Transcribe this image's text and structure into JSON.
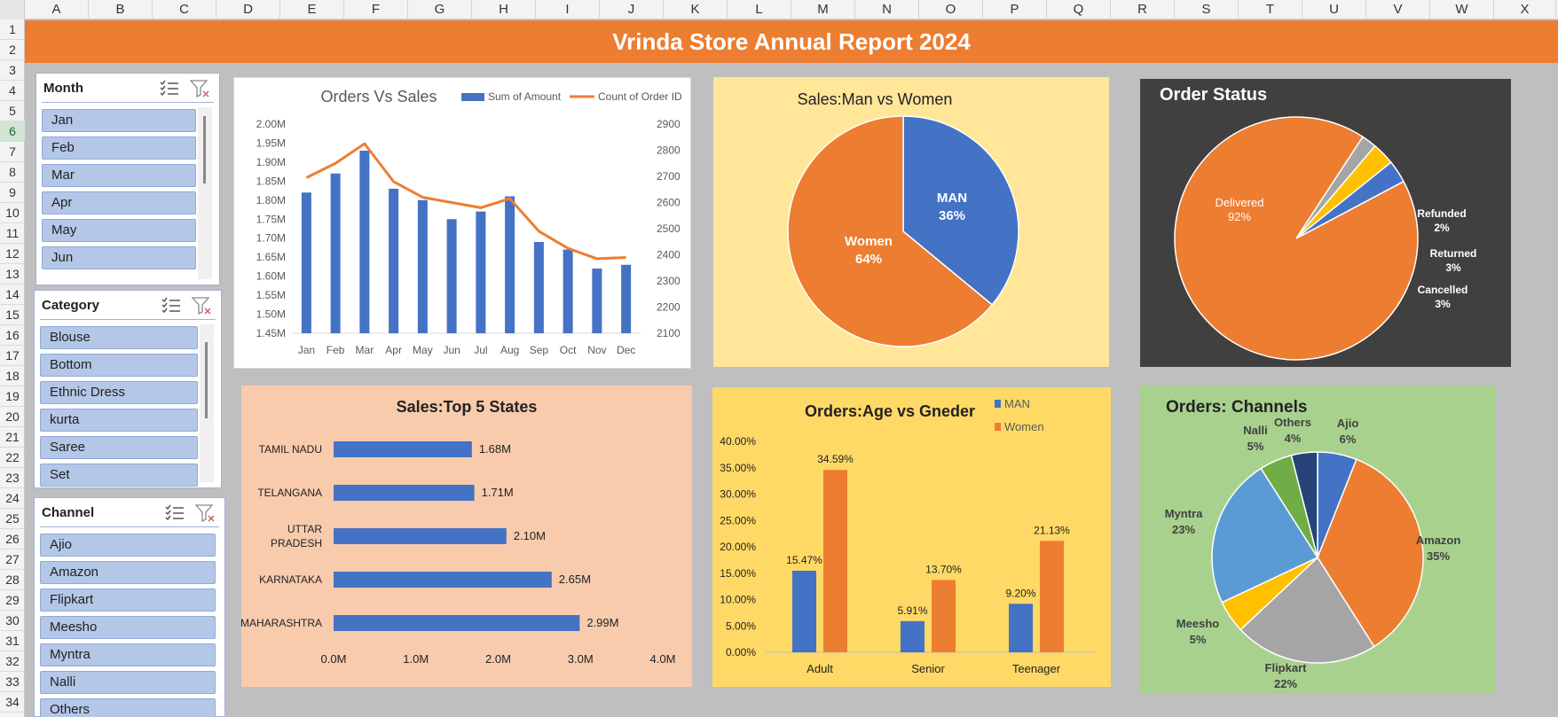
{
  "sheet": {
    "columns": [
      "A",
      "B",
      "C",
      "D",
      "E",
      "F",
      "G",
      "H",
      "I",
      "J",
      "K",
      "L",
      "M",
      "N",
      "O",
      "P",
      "Q",
      "R",
      "S",
      "T",
      "U",
      "V",
      "W",
      "X"
    ],
    "rows": [
      "1",
      "2",
      "3",
      "4",
      "5",
      "6",
      "7",
      "8",
      "9",
      "10",
      "11",
      "12",
      "13",
      "14",
      "15",
      "16",
      "17",
      "18",
      "19",
      "20",
      "21",
      "22",
      "23",
      "24",
      "25",
      "26",
      "27",
      "28",
      "29",
      "30",
      "31",
      "32",
      "33",
      "34"
    ],
    "selected_row": "6"
  },
  "title": "Vrinda Store Annual Report 2024",
  "slicers": [
    {
      "header": "Month",
      "items": [
        "Jan",
        "Feb",
        "Mar",
        "Apr",
        "May",
        "Jun"
      ]
    },
    {
      "header": "Category",
      "items": [
        "Blouse",
        "Bottom",
        "Ethnic Dress",
        "kurta",
        "Saree",
        "Set"
      ]
    },
    {
      "header": "Channel",
      "items": [
        "Ajio",
        "Amazon",
        "Flipkart",
        "Meesho",
        "Myntra",
        "Nalli",
        "Others"
      ]
    }
  ],
  "colors": {
    "blue": "#4472c4",
    "orange": "#ed7d31",
    "gray": "#a5a5a5",
    "yellow": "#ffc000",
    "lightblue": "#5b9bd5",
    "green": "#70ad47",
    "navy": "#264478"
  },
  "chart_data": [
    {
      "type": "bar",
      "title": "Orders Vs Sales",
      "categories": [
        "Jan",
        "Feb",
        "Mar",
        "Apr",
        "May",
        "Jun",
        "Jul",
        "Aug",
        "Sep",
        "Oct",
        "Nov",
        "Dec"
      ],
      "series": [
        {
          "name": "Sum of Amount",
          "type": "bar",
          "axis": "left",
          "values": [
            1.82,
            1.87,
            1.93,
            1.83,
            1.8,
            1.75,
            1.77,
            1.81,
            1.69,
            1.67,
            1.62,
            1.63
          ]
        },
        {
          "name": "Count of Order ID",
          "type": "line",
          "axis": "right",
          "values": [
            2695,
            2750,
            2825,
            2680,
            2620,
            2600,
            2580,
            2615,
            2490,
            2425,
            2385,
            2390
          ]
        }
      ],
      "left_ticks": [
        "2.00M",
        "1.95M",
        "1.90M",
        "1.85M",
        "1.80M",
        "1.75M",
        "1.70M",
        "1.65M",
        "1.60M",
        "1.55M",
        "1.50M",
        "1.45M"
      ],
      "right_ticks": [
        "2900",
        "2800",
        "2700",
        "2600",
        "2500",
        "2400",
        "2300",
        "2200",
        "2100"
      ],
      "ylim_left": [
        1.45,
        2.0
      ],
      "ylim_right": [
        2100,
        2900
      ],
      "legend": "top-right"
    },
    {
      "type": "pie",
      "title": "Sales:Man vs Women",
      "slices": [
        {
          "label": "MAN",
          "value": 36,
          "text": "36%"
        },
        {
          "label": "Women",
          "value": 64,
          "text": "64%"
        }
      ]
    },
    {
      "type": "pie",
      "title": "Order Status",
      "slices": [
        {
          "label": "Delivered",
          "value": 92,
          "text": "92%"
        },
        {
          "label": "Refunded",
          "value": 2,
          "text": "2%"
        },
        {
          "label": "Returned",
          "value": 3,
          "text": "3%"
        },
        {
          "label": "Cancelled",
          "value": 3,
          "text": "3%"
        }
      ]
    },
    {
      "type": "bar",
      "orientation": "horizontal",
      "title": "Sales:Top 5 States",
      "categories": [
        "TAMIL NADU",
        "TELANGANA",
        "UTTAR PRADESH",
        "KARNATAKA",
        "MAHARASHTRA"
      ],
      "category_lines": [
        [
          "TAMIL NADU"
        ],
        [
          "TELANGANA"
        ],
        [
          "UTTAR",
          "PRADESH"
        ],
        [
          "KARNATAKA"
        ],
        [
          "MAHARASHTRA"
        ]
      ],
      "values": [
        1.68,
        1.71,
        2.1,
        2.65,
        2.99
      ],
      "value_labels": [
        "1.68M",
        "1.71M",
        "2.10M",
        "2.65M",
        "2.99M"
      ],
      "x_ticks": [
        "0.0M",
        "1.0M",
        "2.0M",
        "3.0M",
        "4.0M"
      ],
      "xlim": [
        0,
        4
      ]
    },
    {
      "type": "bar",
      "title": "Orders:Age vs Gneder",
      "categories": [
        "Adult",
        "Senior",
        "Teenager"
      ],
      "series": [
        {
          "name": "MAN",
          "values": [
            15.47,
            5.91,
            9.2
          ],
          "labels": [
            "15.47%",
            "5.91%",
            "9.20%"
          ]
        },
        {
          "name": "Women",
          "values": [
            34.59,
            13.7,
            21.13
          ],
          "labels": [
            "34.59%",
            "13.70%",
            "21.13%"
          ]
        }
      ],
      "y_ticks": [
        "40.00%",
        "35.00%",
        "30.00%",
        "25.00%",
        "20.00%",
        "15.00%",
        "10.00%",
        "5.00%",
        "0.00%"
      ],
      "ylim": [
        0,
        40
      ],
      "legend": "top-right"
    },
    {
      "type": "pie",
      "title": "Orders: Channels",
      "slices": [
        {
          "label": "Ajio",
          "value": 6,
          "text": "6%"
        },
        {
          "label": "Amazon",
          "value": 35,
          "text": "35%"
        },
        {
          "label": "Flipkart",
          "value": 22,
          "text": "22%"
        },
        {
          "label": "Meesho",
          "value": 5,
          "text": "5%"
        },
        {
          "label": "Myntra",
          "value": 23,
          "text": "23%"
        },
        {
          "label": "Nalli",
          "value": 5,
          "text": "5%"
        },
        {
          "label": "Others",
          "value": 4,
          "text": "4%"
        }
      ]
    }
  ]
}
